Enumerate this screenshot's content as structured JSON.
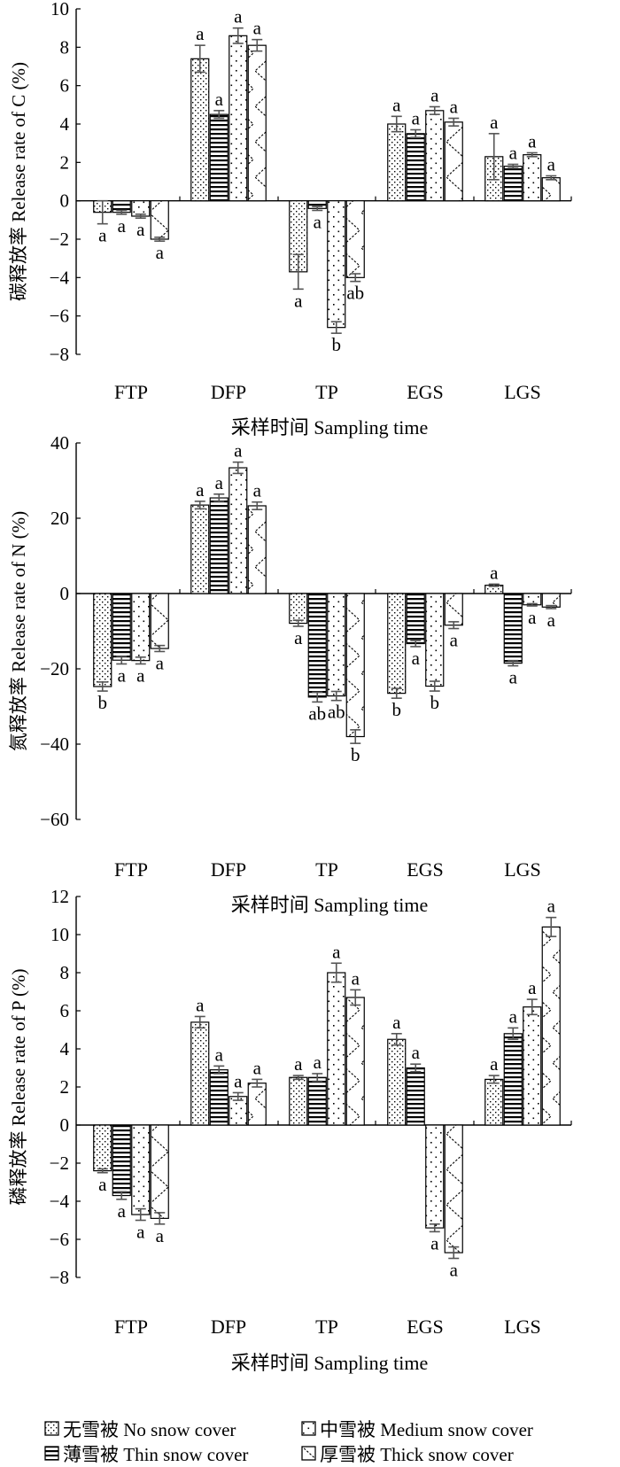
{
  "x_label": "采样时间 Sampling time",
  "legend": [
    {
      "label": "无雪被 No snow cover",
      "pattern": "dots"
    },
    {
      "label": "中雪被 Medium snow cover",
      "pattern": "sparse-dots"
    },
    {
      "label": "薄雪被 Thin snow cover",
      "pattern": "hlines"
    },
    {
      "label": "厚雪被 Thick snow cover",
      "pattern": "zigzag"
    }
  ],
  "chart_data": [
    {
      "type": "bar",
      "ylabel": "碳释放率 Release rate of C (%)",
      "ylim": [
        -8,
        10
      ],
      "yticks": [
        -8,
        -6,
        -4,
        -2,
        0,
        2,
        4,
        6,
        8,
        10
      ],
      "categories": [
        "FTP",
        "DFP",
        "TP",
        "EGS",
        "LGS"
      ],
      "series": [
        {
          "name": "无雪被 No snow cover",
          "values": [
            -0.6,
            7.4,
            -3.7,
            4.0,
            2.3
          ],
          "errors": [
            0.6,
            0.7,
            0.9,
            0.4,
            1.2
          ],
          "labels": [
            "a",
            "a",
            "a",
            "a",
            "a"
          ]
        },
        {
          "name": "薄雪被 Thin snow cover",
          "values": [
            -0.6,
            4.5,
            -0.4,
            3.5,
            1.8
          ],
          "errors": [
            0.1,
            0.2,
            0.1,
            0.2,
            0.1
          ],
          "labels": [
            "a",
            "a",
            "a",
            "a",
            "a"
          ]
        },
        {
          "name": "中雪被 Medium snow cover",
          "values": [
            -0.8,
            8.6,
            -6.6,
            4.7,
            2.4
          ],
          "errors": [
            0.1,
            0.4,
            0.3,
            0.2,
            0.1
          ],
          "labels": [
            "a",
            "a",
            "b",
            "a",
            "a"
          ]
        },
        {
          "name": "厚雪被 Thick snow cover",
          "values": [
            -2.0,
            8.1,
            -4.0,
            4.1,
            1.2
          ],
          "errors": [
            0.1,
            0.3,
            0.2,
            0.2,
            0.1
          ],
          "labels": [
            "a",
            "a",
            "ab",
            "a",
            "a"
          ]
        }
      ]
    },
    {
      "type": "bar",
      "ylabel": "氮释放率 Release rate of N (%)",
      "ylim": [
        -60,
        40
      ],
      "yticks": [
        -60,
        -40,
        -20,
        0,
        20,
        40
      ],
      "categories": [
        "FTP",
        "DFP",
        "TP",
        "EGS",
        "LGS"
      ],
      "series": [
        {
          "name": "无雪被 No snow cover",
          "values": [
            -24.7,
            23.5,
            -7.9,
            -26.5,
            2.2
          ],
          "errors": [
            1.2,
            1.0,
            0.8,
            1.3,
            0.3
          ],
          "labels": [
            "b",
            "a",
            "a",
            "b",
            "a"
          ]
        },
        {
          "name": "薄雪被 Thin snow cover",
          "values": [
            -17.7,
            25.4,
            -27.5,
            -13.3,
            -18.5
          ],
          "errors": [
            1.0,
            1.0,
            1.3,
            0.8,
            0.7
          ],
          "labels": [
            "a",
            "a",
            "ab",
            "a",
            "a"
          ]
        },
        {
          "name": "中雪被 Medium snow cover",
          "values": [
            -17.8,
            33.4,
            -27.2,
            -24.6,
            -3.0
          ],
          "errors": [
            0.9,
            1.5,
            1.2,
            1.3,
            0.3
          ],
          "labels": [
            "a",
            "a",
            "ab",
            "b",
            "a"
          ]
        },
        {
          "name": "厚雪被 Thick snow cover",
          "values": [
            -14.6,
            23.3,
            -38.0,
            -8.4,
            -3.6
          ],
          "errors": [
            0.8,
            1.0,
            1.8,
            0.9,
            0.4
          ],
          "labels": [
            "a",
            "a",
            "b",
            "a",
            "a"
          ]
        }
      ]
    },
    {
      "type": "bar",
      "ylabel": "磷释放率 Release rate of  P (%)",
      "ylim": [
        -8,
        12
      ],
      "yticks": [
        -8,
        -6,
        -4,
        -2,
        0,
        2,
        4,
        6,
        8,
        10,
        12
      ],
      "categories": [
        "FTP",
        "DFP",
        "TP",
        "EGS",
        "LGS"
      ],
      "series": [
        {
          "name": "无雪被 No snow cover",
          "values": [
            -2.4,
            5.4,
            2.5,
            4.5,
            2.4
          ],
          "errors": [
            0.1,
            0.3,
            0.1,
            0.3,
            0.2
          ],
          "labels": [
            "a",
            "a",
            "a",
            "a",
            "a"
          ]
        },
        {
          "name": "薄雪被 Thin snow cover",
          "values": [
            -3.7,
            2.9,
            2.5,
            3.0,
            4.8
          ],
          "errors": [
            0.2,
            0.2,
            0.2,
            0.2,
            0.3
          ],
          "labels": [
            "a",
            "a",
            "a",
            "a",
            "a"
          ]
        },
        {
          "name": "中雪被 Medium snow cover",
          "values": [
            -4.7,
            1.5,
            8.0,
            -5.4,
            6.2
          ],
          "errors": [
            0.3,
            0.2,
            0.5,
            0.2,
            0.4
          ],
          "labels": [
            "a",
            "a",
            "a",
            "a",
            "a"
          ]
        },
        {
          "name": "厚雪被 Thick snow cover",
          "values": [
            -4.9,
            2.2,
            6.7,
            -6.7,
            10.4
          ],
          "errors": [
            0.3,
            0.2,
            0.4,
            0.3,
            0.5
          ],
          "labels": [
            "a",
            "a",
            "a",
            "a",
            "a"
          ]
        }
      ]
    }
  ]
}
